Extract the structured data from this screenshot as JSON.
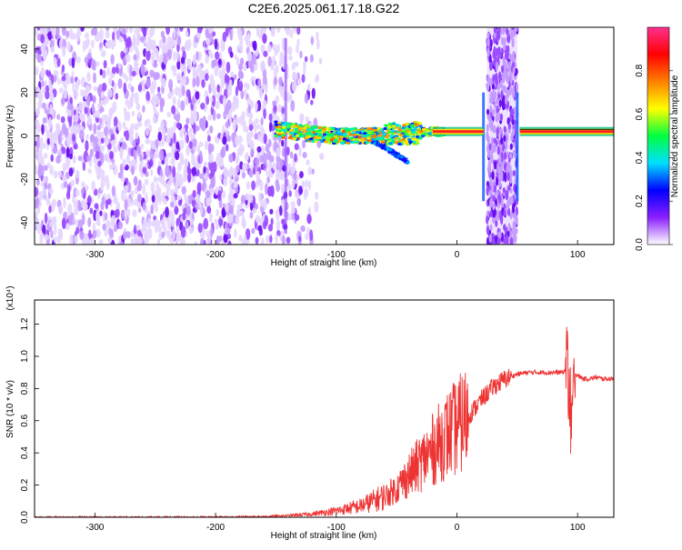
{
  "title": "C2E6.2025.061.17.18.G22",
  "chart_data": [
    {
      "type": "heatmap",
      "xlabel": "Height of straight line (km)",
      "ylabel": "Frequency (Hz)",
      "xlim": [
        -350,
        130
      ],
      "ylim": [
        -50,
        50
      ],
      "x_ticks": [
        -300,
        -200,
        -100,
        0,
        100
      ],
      "y_ticks": [
        -40,
        -20,
        0,
        20,
        40
      ],
      "colorbar": {
        "label": "Normalized spectral amplitude",
        "range": [
          0,
          1
        ],
        "ticks": [
          "0.0",
          "0.2",
          "0.4",
          "0.6",
          "0.8"
        ],
        "colors": [
          "#ffffff",
          "#8a1eff",
          "#0000ff",
          "#00e0ff",
          "#00ff40",
          "#ffff00",
          "#ff8000",
          "#ff0000",
          "#ff3090"
        ]
      },
      "features": {
        "noise_region_km": [
          -350,
          -115
        ],
        "carrier_track_km": [
          -150,
          130
        ],
        "carrier_freq_hz": [
          [
            -150,
            3
          ],
          [
            -120,
            1
          ],
          [
            -100,
            0
          ],
          [
            -70,
            0
          ],
          [
            -50,
            1
          ],
          [
            -40,
            1
          ],
          [
            -20,
            2
          ],
          [
            0,
            2
          ],
          [
            20,
            2
          ],
          [
            50,
            2
          ],
          [
            130,
            2
          ]
        ],
        "noise_band_km": [
          25,
          50
        ],
        "noise_band_edges_km": [
          22,
          50
        ]
      }
    },
    {
      "type": "line",
      "xlabel": "Height of straight line (km)",
      "ylabel": "SNR (10 * v/v)",
      "y_multiplier": "(x10⁴)",
      "xlim": [
        -350,
        130
      ],
      "ylim": [
        0,
        1.35
      ],
      "x_ticks": [
        -300,
        -200,
        -100,
        0,
        100
      ],
      "y_ticks": [
        "0.0",
        "0.2",
        "0.4",
        "0.6",
        "0.8",
        "1.0",
        "1.2"
      ],
      "series_color": "#ee3333",
      "series": [
        {
          "x": [
            -350,
            -250,
            -200,
            -160,
            -140,
            -120,
            -100,
            -80,
            -60,
            -50,
            -40,
            -30,
            -20,
            -10,
            0,
            10,
            20,
            30,
            40,
            50,
            60,
            70,
            80,
            88,
            92,
            95,
            98,
            100,
            105,
            110,
            115,
            120,
            125,
            130
          ],
          "y": [
            0.0,
            0.0,
            0.0,
            0.005,
            0.01,
            0.02,
            0.04,
            0.07,
            0.13,
            0.18,
            0.26,
            0.34,
            0.42,
            0.5,
            0.56,
            0.63,
            0.73,
            0.81,
            0.86,
            0.89,
            0.9,
            0.9,
            0.9,
            0.9,
            0.93,
            0.55,
            0.89,
            0.88,
            0.86,
            0.86,
            0.87,
            0.86,
            0.86,
            0.86
          ]
        }
      ]
    }
  ]
}
